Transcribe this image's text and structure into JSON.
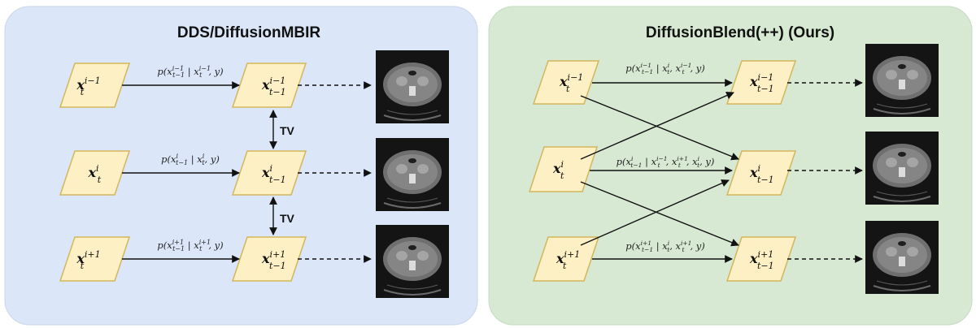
{
  "panels": {
    "left": {
      "title": "DDS/DiffusionMBIR",
      "bg_color": "#dbe6f8",
      "nodes": {
        "in_top": "x_t^{i-1}",
        "in_mid": "x_t^{i}",
        "in_bot": "x_t^{i+1}",
        "out_top": "x_{t-1}^{i-1}",
        "out_mid": "x_{t-1}^{i}",
        "out_bot": "x_{t-1}^{i+1}"
      },
      "edges": {
        "top": "p(x_{t-1}^{i-1} | x_t^{i-1}, y)",
        "mid": "p(x_{t-1}^{i} | x_t^{i}, y)",
        "bot": "p(x_{t-1}^{i+1} | x_t^{i+1}, y)"
      },
      "tv_top": "TV",
      "tv_bot": "TV"
    },
    "right": {
      "title": "DiffusionBlend(++) (Ours)",
      "bg_color": "#d7e9d3",
      "nodes": {
        "in_top": "x_t^{i-1}",
        "in_mid": "x_t^{i}",
        "in_bot": "x_t^{i+1}",
        "out_top": "x_{t-1}^{i-1}",
        "out_mid": "x_{t-1}^{i}",
        "out_bot": "x_{t-1}^{i+1}"
      },
      "edges": {
        "top": "p(x_{t-1}^{i-1} | x_t^{i}, x_t^{i-1}, y)",
        "mid": "p(x_{t-1}^{i} | x_t^{i-1}, x_t^{i+1}, x_t^{i}, y)",
        "bot": "p(x_{t-1}^{i+1} | x_t^{i}, x_t^{i+1}, y)"
      }
    }
  },
  "colors": {
    "node_fill": "#fdf0c4",
    "node_stroke": "#d4b65c",
    "ct_bg": "#141414",
    "ct_body": "#7a7a7a"
  },
  "images": [
    "ct-slice-icon",
    "ct-slice-icon",
    "ct-slice-icon",
    "ct-slice-icon",
    "ct-slice-icon",
    "ct-slice-icon"
  ]
}
